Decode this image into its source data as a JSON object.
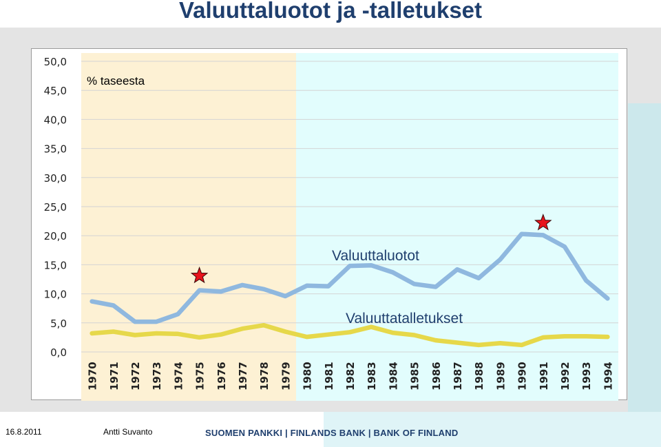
{
  "slide": {
    "title": "Valuuttaluotot ja -talletukset",
    "footer_date": "16.8.2011",
    "footer_author": "Antti Suvanto",
    "footer_bank": "SUOMEN PANKKI | FINLANDS BANK | BANK OF FINLAND"
  },
  "colors": {
    "title": "#1f3f6e",
    "loans_line": "#8fb8df",
    "deposits_line": "#e6d84a",
    "shade_1970s": "#fdf1d4",
    "shade_1980s": "#e2fdfd",
    "star": "#e8141c"
  },
  "chart_data": {
    "type": "line",
    "unit_label": "% taseesta",
    "x": [
      "1970",
      "1971",
      "1972",
      "1973",
      "1974",
      "1975",
      "1976",
      "1977",
      "1978",
      "1979",
      "1980",
      "1981",
      "1982",
      "1983",
      "1984",
      "1985",
      "1986",
      "1987",
      "1988",
      "1989",
      "1990",
      "1991",
      "1992",
      "1993",
      "1994"
    ],
    "series": [
      {
        "name": "Valuuttaluotot",
        "values": [
          8.7,
          8.0,
          5.2,
          5.2,
          6.5,
          10.6,
          10.4,
          11.5,
          10.8,
          9.6,
          11.4,
          11.3,
          14.8,
          14.9,
          13.7,
          11.7,
          11.2,
          14.2,
          12.7,
          15.9,
          20.3,
          20.1,
          18.1,
          12.3,
          9.2
        ],
        "color": "#8fb8df"
      },
      {
        "name": "Valuuttatalletukset",
        "values": [
          3.2,
          3.5,
          2.9,
          3.2,
          3.1,
          2.5,
          3.0,
          4.0,
          4.6,
          3.5,
          2.6,
          3.0,
          3.4,
          4.3,
          3.3,
          2.9,
          2.0,
          1.6,
          1.2,
          1.5,
          1.2,
          2.5,
          2.7,
          2.7,
          2.6
        ],
        "color": "#e6d84a"
      }
    ],
    "ylim": [
      0,
      50
    ],
    "yticks": [
      "0,0",
      "5,0",
      "10,0",
      "15,0",
      "20,0",
      "25,0",
      "30,0",
      "35,0",
      "40,0",
      "45,0",
      "50,0"
    ],
    "grid": true,
    "shaded_periods": [
      {
        "from": "1970",
        "to": "1979",
        "color": "#fdf1d4"
      },
      {
        "from": "1980",
        "to": "1994",
        "color": "#e2fdfd"
      }
    ],
    "star_markers": [
      {
        "x": "1975",
        "y": 13.1
      },
      {
        "x": "1991",
        "y": 22.2
      }
    ]
  }
}
